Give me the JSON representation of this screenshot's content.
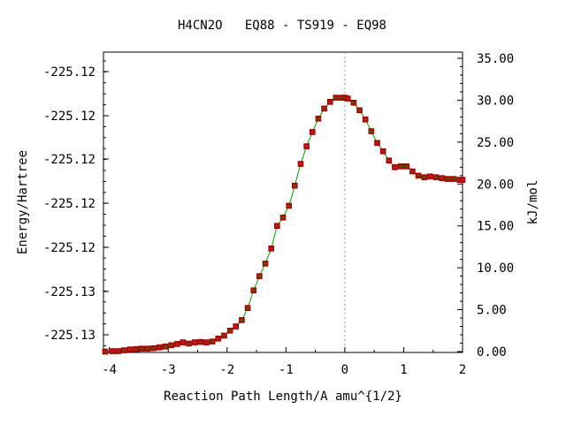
{
  "chart_data": {
    "type": "line",
    "title": "H4CN2O   EQ88 - TS919 - EQ98",
    "xlabel": "Reaction Path Length/A amu^{1/2}",
    "ylabel": "Energy/Hartree",
    "y2label": "kJ/mol",
    "xlim": [
      -4.1,
      2.0
    ],
    "y2lim": [
      0.0,
      35.0
    ],
    "x_ticks": [
      "-4",
      "-3",
      "-2",
      "-1",
      "0",
      "1",
      "2"
    ],
    "y_ticks": [
      "-225.12",
      "-225.12",
      "-225.12",
      "-225.12",
      "-225.12",
      "-225.13",
      "-225.13"
    ],
    "y2_ticks": [
      "35.00",
      "30.00",
      "25.00",
      "20.00",
      "15.00",
      "10.00",
      "5.00",
      "0.00"
    ],
    "ts_x": 0.0,
    "colors": {
      "line": "#00a000",
      "marker": "#cc0000",
      "ts_line": "#999999"
    },
    "series": [
      {
        "x": [
          -4.07,
          -3.95,
          -3.85,
          -3.75,
          -3.65,
          -3.55,
          -3.45,
          -3.35,
          -3.25,
          -3.15,
          -3.05,
          -2.95,
          -2.85,
          -2.75,
          -2.65,
          -2.55,
          -2.45,
          -2.35,
          -2.25,
          -2.15,
          -2.05,
          -1.95,
          -1.85,
          -1.75,
          -1.65,
          -1.55,
          -1.45,
          -1.35,
          -1.25,
          -1.15,
          -1.05,
          -0.95,
          -0.85,
          -0.75,
          -0.65,
          -0.55,
          -0.45,
          -0.35,
          -0.25,
          -0.15,
          -0.05,
          0.0,
          0.05,
          0.15,
          0.25,
          0.35,
          0.45,
          0.55,
          0.65,
          0.75,
          0.85,
          0.95,
          1.05,
          1.15,
          1.25,
          1.35,
          1.45,
          1.55,
          1.65,
          1.75,
          1.85,
          1.95,
          2.0
        ],
        "y": [
          0.0,
          0.05,
          0.05,
          0.15,
          0.25,
          0.3,
          0.35,
          0.35,
          0.4,
          0.5,
          0.6,
          0.75,
          0.9,
          1.1,
          0.95,
          1.1,
          1.15,
          1.1,
          1.2,
          1.55,
          1.9,
          2.5,
          3.0,
          3.75,
          5.2,
          7.3,
          9.0,
          10.5,
          12.3,
          15.0,
          16.0,
          17.4,
          19.8,
          22.4,
          24.5,
          26.2,
          27.8,
          29.0,
          29.8,
          30.3,
          30.3,
          30.3,
          30.2,
          29.7,
          28.8,
          27.7,
          26.3,
          24.9,
          23.9,
          22.8,
          22.0,
          22.1,
          22.1,
          21.5,
          21.0,
          20.8,
          20.9,
          20.8,
          20.7,
          20.6,
          20.6,
          20.5,
          20.5
        ]
      }
    ]
  }
}
